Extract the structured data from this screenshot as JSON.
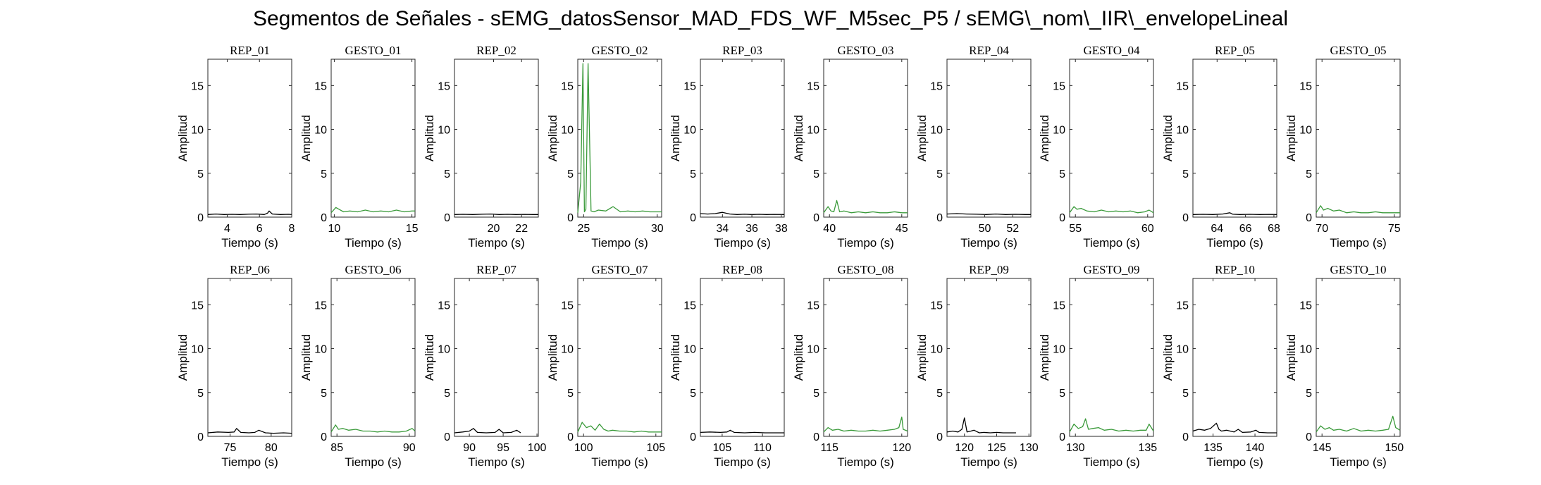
{
  "figure": {
    "title": "Segmentos de Señales - sEMG_datosSensor_MAD_FDS_WF_M5sec_P5 / sEMG\\_nom\\_IIR\\_envelopeLineal"
  },
  "colors": {
    "rep": "#000000",
    "gesto": "#3a9a3a",
    "axis": "#262626"
  },
  "chart_data": [
    {
      "type": "line",
      "title": "REP_01",
      "kind": "rep",
      "xlabel": "Tiempo (s)",
      "ylabel": "Amplitud",
      "xlim": [
        2.8,
        8
      ],
      "ylim": [
        0,
        18
      ],
      "xticks": [
        4,
        6,
        8
      ],
      "yticks": [
        0,
        5,
        10,
        15
      ],
      "series": [
        {
          "x": [
            2.8,
            3.3,
            3.8,
            4.3,
            4.8,
            5.3,
            5.8,
            6.3,
            6.5,
            6.6,
            6.8,
            7.3,
            7.8,
            8.0
          ],
          "y": [
            0.3,
            0.35,
            0.3,
            0.32,
            0.3,
            0.33,
            0.35,
            0.3,
            0.45,
            0.7,
            0.35,
            0.3,
            0.32,
            0.3
          ]
        }
      ]
    },
    {
      "type": "line",
      "title": "GESTO_01",
      "kind": "gesto",
      "xlabel": "Tiempo (s)",
      "ylabel": "Amplitud",
      "xlim": [
        9.8,
        15.2
      ],
      "ylim": [
        0,
        18
      ],
      "xticks": [
        10,
        15
      ],
      "yticks": [
        0,
        5,
        10,
        15
      ],
      "series": [
        {
          "x": [
            9.8,
            10.1,
            10.3,
            10.6,
            11.0,
            11.5,
            12.0,
            12.5,
            13.0,
            13.5,
            14.0,
            14.5,
            15.0,
            15.2
          ],
          "y": [
            0.5,
            1.1,
            0.9,
            0.6,
            0.7,
            0.6,
            0.8,
            0.6,
            0.7,
            0.6,
            0.8,
            0.6,
            0.7,
            0.7
          ]
        }
      ]
    },
    {
      "type": "line",
      "title": "REP_02",
      "kind": "rep",
      "xlabel": "Tiempo (s)",
      "ylabel": "Amplitud",
      "xlim": [
        17.2,
        23.2
      ],
      "ylim": [
        0,
        18
      ],
      "xticks": [
        20,
        22
      ],
      "yticks": [
        0,
        5,
        10,
        15
      ],
      "series": [
        {
          "x": [
            17.2,
            17.8,
            18.5,
            19.2,
            19.8,
            20.4,
            21.0,
            21.6,
            22.2,
            22.8,
            23.2
          ],
          "y": [
            0.3,
            0.32,
            0.3,
            0.33,
            0.35,
            0.3,
            0.32,
            0.3,
            0.31,
            0.3,
            0.3
          ]
        }
      ]
    },
    {
      "type": "line",
      "title": "GESTO_02",
      "kind": "gesto",
      "xlabel": "Tiempo (s)",
      "ylabel": "Amplitud",
      "xlim": [
        24.6,
        30.3
      ],
      "ylim": [
        0,
        18
      ],
      "xticks": [
        25,
        30
      ],
      "yticks": [
        0,
        5,
        10,
        15
      ],
      "series": [
        {
          "x": [
            24.6,
            24.8,
            24.95,
            25.05,
            25.15,
            25.3,
            25.5,
            25.7,
            26.0,
            26.5,
            27.0,
            27.5,
            28.0,
            28.5,
            29.0,
            29.5,
            30.0,
            30.3
          ],
          "y": [
            0.5,
            4.0,
            17.5,
            0.6,
            0.9,
            17.5,
            0.7,
            0.6,
            0.8,
            0.7,
            1.2,
            0.6,
            0.7,
            0.6,
            0.7,
            0.6,
            0.6,
            0.6
          ]
        }
      ]
    },
    {
      "type": "line",
      "title": "REP_03",
      "kind": "rep",
      "xlabel": "Tiempo (s)",
      "ylabel": "Amplitud",
      "xlim": [
        32.5,
        38.2
      ],
      "ylim": [
        0,
        18
      ],
      "xticks": [
        34,
        36,
        38
      ],
      "yticks": [
        0,
        5,
        10,
        15
      ],
      "series": [
        {
          "x": [
            32.5,
            33.0,
            33.5,
            34.0,
            34.5,
            35.0,
            35.5,
            36.0,
            36.5,
            37.0,
            37.5,
            38.2
          ],
          "y": [
            0.4,
            0.35,
            0.4,
            0.55,
            0.35,
            0.3,
            0.33,
            0.3,
            0.32,
            0.3,
            0.31,
            0.3
          ]
        }
      ]
    },
    {
      "type": "line",
      "title": "GESTO_03",
      "kind": "gesto",
      "xlabel": "Tiempo (s)",
      "ylabel": "Amplitud",
      "xlim": [
        39.6,
        45.4
      ],
      "ylim": [
        0,
        18
      ],
      "xticks": [
        40,
        45
      ],
      "yticks": [
        0,
        5,
        10,
        15
      ],
      "series": [
        {
          "x": [
            39.6,
            39.9,
            40.1,
            40.3,
            40.5,
            40.7,
            41.0,
            41.5,
            42.0,
            42.5,
            43.0,
            43.5,
            44.0,
            44.5,
            45.0,
            45.4
          ],
          "y": [
            0.5,
            1.2,
            0.7,
            0.6,
            1.9,
            0.6,
            0.7,
            0.5,
            0.6,
            0.5,
            0.6,
            0.5,
            0.5,
            0.6,
            0.5,
            0.5
          ]
        }
      ]
    },
    {
      "type": "line",
      "title": "REP_04",
      "kind": "rep",
      "xlabel": "Tiempo (s)",
      "ylabel": "Amplitud",
      "xlim": [
        47.3,
        53.3
      ],
      "ylim": [
        0,
        18
      ],
      "xticks": [
        50,
        52
      ],
      "yticks": [
        0,
        5,
        10,
        15
      ],
      "series": [
        {
          "x": [
            47.3,
            48.0,
            48.7,
            49.4,
            50.1,
            50.8,
            51.5,
            52.2,
            52.9,
            53.3
          ],
          "y": [
            0.35,
            0.4,
            0.35,
            0.33,
            0.3,
            0.35,
            0.3,
            0.32,
            0.3,
            0.3
          ]
        }
      ]
    },
    {
      "type": "line",
      "title": "GESTO_04",
      "kind": "gesto",
      "xlabel": "Tiempo (s)",
      "ylabel": "Amplitud",
      "xlim": [
        54.6,
        60.4
      ],
      "ylim": [
        0,
        18
      ],
      "xticks": [
        55,
        60
      ],
      "yticks": [
        0,
        5,
        10,
        15
      ],
      "series": [
        {
          "x": [
            54.6,
            54.9,
            55.1,
            55.4,
            55.8,
            56.3,
            56.8,
            57.3,
            57.8,
            58.3,
            58.8,
            59.3,
            59.8,
            60.1,
            60.4
          ],
          "y": [
            0.5,
            1.2,
            0.9,
            1.0,
            0.7,
            0.6,
            0.8,
            0.6,
            0.7,
            0.6,
            0.7,
            0.5,
            0.6,
            0.8,
            0.5
          ]
        }
      ]
    },
    {
      "type": "line",
      "title": "REP_05",
      "kind": "rep",
      "xlabel": "Tiempo (s)",
      "ylabel": "Amplitud",
      "xlim": [
        62.3,
        68.2
      ],
      "ylim": [
        0,
        18
      ],
      "xticks": [
        64,
        66,
        68
      ],
      "yticks": [
        0,
        5,
        10,
        15
      ],
      "series": [
        {
          "x": [
            62.3,
            63.0,
            63.7,
            64.4,
            64.9,
            65.1,
            65.6,
            66.3,
            67.0,
            67.7,
            68.2
          ],
          "y": [
            0.3,
            0.32,
            0.3,
            0.35,
            0.5,
            0.33,
            0.3,
            0.32,
            0.3,
            0.31,
            0.3
          ]
        }
      ]
    },
    {
      "type": "line",
      "title": "GESTO_05",
      "kind": "gesto",
      "xlabel": "Tiempo (s)",
      "ylabel": "Amplitud",
      "xlim": [
        69.6,
        75.4
      ],
      "ylim": [
        0,
        18
      ],
      "xticks": [
        70,
        75
      ],
      "yticks": [
        0,
        5,
        10,
        15
      ],
      "series": [
        {
          "x": [
            69.6,
            69.9,
            70.1,
            70.4,
            70.8,
            71.2,
            71.7,
            72.2,
            72.7,
            73.2,
            73.7,
            74.2,
            74.7,
            75.4
          ],
          "y": [
            0.5,
            1.3,
            0.8,
            1.0,
            0.7,
            0.8,
            0.5,
            0.6,
            0.5,
            0.5,
            0.6,
            0.5,
            0.5,
            0.5
          ]
        }
      ]
    },
    {
      "type": "line",
      "title": "REP_06",
      "kind": "rep",
      "xlabel": "Tiempo (s)",
      "ylabel": "Amplitud",
      "xlim": [
        72.3,
        82.5
      ],
      "ylim": [
        0,
        18
      ],
      "xticks": [
        75,
        80
      ],
      "yticks": [
        0,
        5,
        10,
        15
      ],
      "series": [
        {
          "x": [
            72.3,
            73.5,
            74.8,
            75.5,
            75.8,
            76.3,
            77.3,
            78.0,
            78.5,
            79.3,
            80.3,
            81.5,
            82.5
          ],
          "y": [
            0.4,
            0.5,
            0.45,
            0.5,
            0.9,
            0.45,
            0.4,
            0.45,
            0.7,
            0.4,
            0.35,
            0.4,
            0.35
          ]
        }
      ]
    },
    {
      "type": "line",
      "title": "GESTO_06",
      "kind": "gesto",
      "xlabel": "Tiempo (s)",
      "ylabel": "Amplitud",
      "xlim": [
        84.6,
        90.4
      ],
      "ylim": [
        0,
        18
      ],
      "xticks": [
        85,
        90
      ],
      "yticks": [
        0,
        5,
        10,
        15
      ],
      "series": [
        {
          "x": [
            84.6,
            84.9,
            85.1,
            85.4,
            85.8,
            86.3,
            86.8,
            87.3,
            87.8,
            88.3,
            88.8,
            89.3,
            89.8,
            90.2,
            90.4
          ],
          "y": [
            0.5,
            1.3,
            0.8,
            0.9,
            0.7,
            0.8,
            0.6,
            0.6,
            0.5,
            0.6,
            0.5,
            0.5,
            0.6,
            0.9,
            0.6
          ]
        }
      ]
    },
    {
      "type": "line",
      "title": "REP_07",
      "kind": "rep",
      "xlabel": "Tiempo (s)",
      "ylabel": "Amplitud",
      "xlim": [
        87.8,
        100.2
      ],
      "ylim": [
        0,
        18
      ],
      "xticks": [
        90,
        95,
        100
      ],
      "yticks": [
        0,
        5,
        10,
        15
      ],
      "series": [
        {
          "x": [
            87.8,
            89.0,
            90.0,
            90.6,
            91.2,
            92.5,
            93.8,
            94.4,
            95.0,
            96.2,
            97.0,
            97.6
          ],
          "y": [
            0.4,
            0.5,
            0.6,
            0.9,
            0.45,
            0.4,
            0.45,
            0.8,
            0.4,
            0.45,
            0.7,
            0.4
          ]
        }
      ]
    },
    {
      "type": "line",
      "title": "GESTO_07",
      "kind": "gesto",
      "xlabel": "Tiempo (s)",
      "ylabel": "Amplitud",
      "xlim": [
        99.6,
        105.4
      ],
      "ylim": [
        0,
        18
      ],
      "xticks": [
        100,
        105
      ],
      "yticks": [
        0,
        5,
        10,
        15
      ],
      "series": [
        {
          "x": [
            99.6,
            99.9,
            100.2,
            100.5,
            100.8,
            101.1,
            101.4,
            101.7,
            102.0,
            102.5,
            103.0,
            103.5,
            104.0,
            104.5,
            105.0,
            105.4
          ],
          "y": [
            0.5,
            1.6,
            1.0,
            1.2,
            0.7,
            1.4,
            0.8,
            0.6,
            0.7,
            0.6,
            0.6,
            0.5,
            0.6,
            0.5,
            0.5,
            0.5
          ]
        }
      ]
    },
    {
      "type": "line",
      "title": "REP_08",
      "kind": "rep",
      "xlabel": "Tiempo (s)",
      "ylabel": "Amplitud",
      "xlim": [
        102.3,
        112.7
      ],
      "ylim": [
        0,
        18
      ],
      "xticks": [
        105,
        110
      ],
      "yticks": [
        0,
        5,
        10,
        15
      ],
      "series": [
        {
          "x": [
            102.3,
            103.5,
            104.8,
            105.6,
            106.0,
            106.5,
            107.8,
            109.0,
            110.3,
            111.5,
            112.7
          ],
          "y": [
            0.45,
            0.5,
            0.45,
            0.5,
            0.7,
            0.45,
            0.4,
            0.45,
            0.4,
            0.4,
            0.4
          ]
        }
      ]
    },
    {
      "type": "line",
      "title": "GESTO_08",
      "kind": "gesto",
      "xlabel": "Tiempo (s)",
      "ylabel": "Amplitud",
      "xlim": [
        114.6,
        120.4
      ],
      "ylim": [
        0,
        18
      ],
      "xticks": [
        115,
        120
      ],
      "yticks": [
        0,
        5,
        10,
        15
      ],
      "series": [
        {
          "x": [
            114.6,
            114.9,
            115.2,
            115.6,
            116.0,
            116.5,
            117.0,
            117.5,
            118.0,
            118.5,
            119.0,
            119.5,
            119.8,
            120.0,
            120.1,
            120.4
          ],
          "y": [
            0.5,
            1.0,
            0.7,
            0.8,
            0.6,
            0.7,
            0.6,
            0.6,
            0.7,
            0.6,
            0.7,
            0.8,
            1.0,
            2.2,
            0.8,
            0.6
          ]
        }
      ]
    },
    {
      "type": "line",
      "title": "REP_09",
      "kind": "rep",
      "xlabel": "Tiempo (s)",
      "ylabel": "Amplitud",
      "xlim": [
        117.3,
        130.3
      ],
      "ylim": [
        0,
        18
      ],
      "xticks": [
        120,
        125,
        130
      ],
      "yticks": [
        0,
        5,
        10,
        15
      ],
      "series": [
        {
          "x": [
            117.3,
            118.2,
            119.0,
            119.6,
            120.0,
            120.4,
            121.0,
            121.5,
            122.3,
            123.0,
            124.0,
            125.0,
            126.0,
            127.0,
            128.0
          ],
          "y": [
            0.5,
            0.6,
            0.5,
            0.8,
            2.1,
            0.5,
            0.6,
            0.7,
            0.4,
            0.45,
            0.4,
            0.45,
            0.4,
            0.4,
            0.4
          ]
        }
      ]
    },
    {
      "type": "line",
      "title": "GESTO_09",
      "kind": "gesto",
      "xlabel": "Tiempo (s)",
      "ylabel": "Amplitud",
      "xlim": [
        129.6,
        135.4
      ],
      "ylim": [
        0,
        18
      ],
      "xticks": [
        130,
        135
      ],
      "yticks": [
        0,
        5,
        10,
        15
      ],
      "series": [
        {
          "x": [
            129.6,
            129.9,
            130.2,
            130.5,
            130.7,
            130.9,
            131.2,
            131.6,
            132.0,
            132.5,
            133.0,
            133.5,
            134.0,
            134.5,
            134.9,
            135.1,
            135.4
          ],
          "y": [
            0.5,
            1.4,
            0.9,
            1.1,
            2.0,
            0.8,
            0.9,
            1.0,
            0.7,
            0.8,
            0.6,
            0.7,
            0.6,
            0.7,
            0.7,
            1.4,
            0.6
          ]
        }
      ]
    },
    {
      "type": "line",
      "title": "REP_10",
      "kind": "rep",
      "xlabel": "Tiempo (s)",
      "ylabel": "Amplitud",
      "xlim": [
        132.6,
        142.6
      ],
      "ylim": [
        0,
        18
      ],
      "xticks": [
        135,
        140
      ],
      "yticks": [
        0,
        5,
        10,
        15
      ],
      "series": [
        {
          "x": [
            132.6,
            133.3,
            134.0,
            134.7,
            135.4,
            135.7,
            136.0,
            136.6,
            137.5,
            138.0,
            138.5,
            139.5,
            140.1,
            140.5,
            141.5,
            142.6
          ],
          "y": [
            0.6,
            0.8,
            0.7,
            0.9,
            1.5,
            0.8,
            0.6,
            0.7,
            0.5,
            0.8,
            0.45,
            0.5,
            0.7,
            0.45,
            0.4,
            0.4
          ]
        }
      ]
    },
    {
      "type": "line",
      "title": "GESTO_10",
      "kind": "gesto",
      "xlabel": "Tiempo (s)",
      "ylabel": "Amplitud",
      "xlim": [
        144.6,
        150.4
      ],
      "ylim": [
        0,
        18
      ],
      "xticks": [
        145,
        150
      ],
      "yticks": [
        0,
        5,
        10,
        15
      ],
      "series": [
        {
          "x": [
            144.6,
            144.9,
            145.2,
            145.5,
            145.8,
            146.2,
            146.7,
            147.2,
            147.7,
            148.2,
            148.7,
            149.2,
            149.6,
            149.9,
            150.1,
            150.4
          ],
          "y": [
            0.5,
            1.2,
            0.8,
            1.0,
            0.7,
            0.8,
            0.6,
            0.9,
            0.6,
            0.7,
            0.6,
            0.7,
            0.8,
            2.3,
            1.0,
            0.7
          ]
        }
      ]
    }
  ]
}
